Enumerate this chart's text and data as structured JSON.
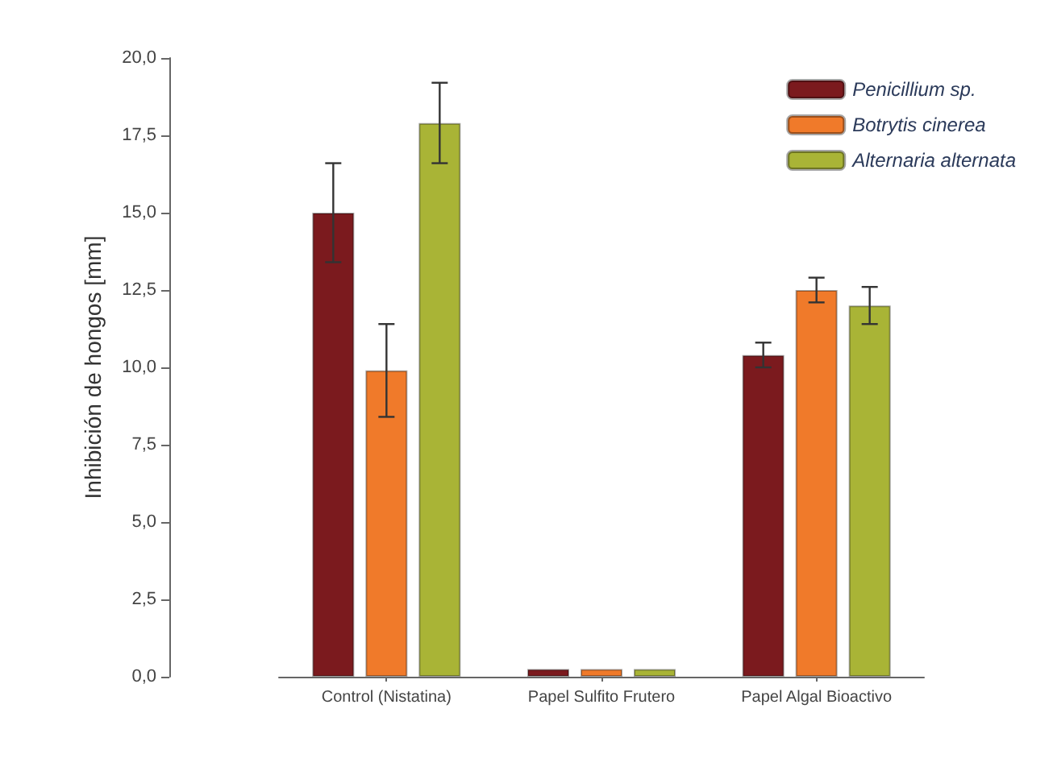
{
  "chart_data": {
    "type": "bar",
    "ylabel": "Inhibición de hongos [mm]",
    "categories": [
      "Control (Nistatina)",
      "Papel Sulfito Frutero",
      "Papel Algal Bioactivo"
    ],
    "series": [
      {
        "name": "Penicillium sp.",
        "color": "#7b1a1e",
        "values": [
          15.0,
          0.25,
          10.4
        ],
        "errors": [
          1.6,
          null,
          0.4
        ]
      },
      {
        "name": "Botrytis cinerea",
        "color": "#f07a2a",
        "values": [
          9.9,
          0.25,
          12.5
        ],
        "errors": [
          1.5,
          null,
          0.4
        ]
      },
      {
        "name": "Alternaria alternata",
        "color": "#a9b436",
        "values": [
          17.9,
          0.25,
          12.0
        ],
        "errors": [
          1.3,
          null,
          0.6
        ]
      }
    ],
    "ylim": [
      0,
      20
    ],
    "yticks": [
      {
        "value": 0,
        "label": "0,0"
      },
      {
        "value": 2.5,
        "label": "2,5"
      },
      {
        "value": 5,
        "label": "5,0"
      },
      {
        "value": 7.5,
        "label": "7,5"
      },
      {
        "value": 10,
        "label": "10,0"
      },
      {
        "value": 12.5,
        "label": "12,5"
      },
      {
        "value": 15,
        "label": "15,0"
      },
      {
        "value": 17.5,
        "label": "17,5"
      },
      {
        "value": 20,
        "label": "20,0"
      }
    ],
    "grid": false,
    "legend": "top right"
  }
}
